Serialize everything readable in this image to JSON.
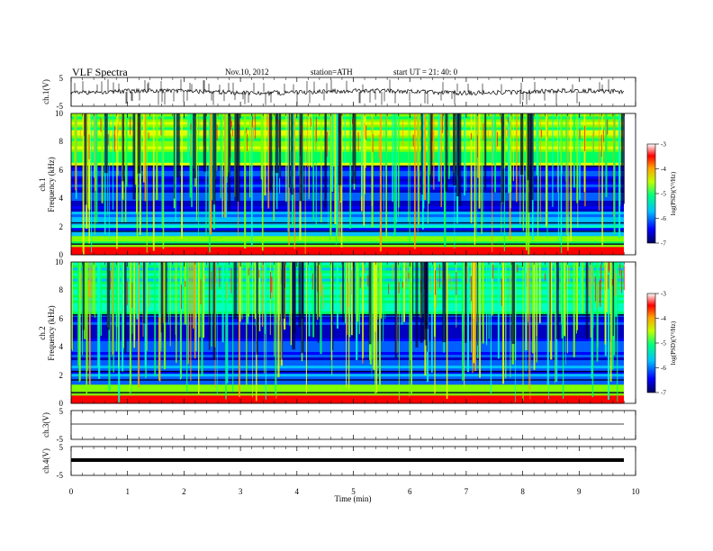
{
  "header": {
    "title": "VLF  Spectra",
    "date": "Nov.10, 2012",
    "station": "station=ATH",
    "start": "start  UT  =   21: 40: 0"
  },
  "chart_data": [
    {
      "type": "line",
      "ylabel": "ch.1(V)",
      "ylim": [
        -5,
        5
      ],
      "yticks": [
        "5",
        "-5"
      ],
      "description_level": -0.2
    },
    {
      "type": "heatmap",
      "ylabel_channel": "ch.1",
      "ylabel": "Frequency  (kHz)",
      "ylim": [
        0,
        10
      ],
      "yticks": [
        "0",
        "2",
        "4",
        "6",
        "8",
        "10"
      ],
      "colorbar": {
        "label": "log(PSD)(V²/Hz)",
        "range": [
          -7,
          -3
        ],
        "ticks": [
          "-3",
          "-4",
          "-5",
          "-6",
          "-7"
        ],
        "colors": [
          "#000060",
          "#0000ff",
          "#00c0ff",
          "#00ff80",
          "#c0ff00",
          "#ffa000",
          "#ff0000",
          "#ffffff"
        ]
      }
    },
    {
      "type": "heatmap",
      "ylabel_channel": "ch.2",
      "ylabel": "Frequency  (kHz)",
      "ylim": [
        0,
        10
      ],
      "yticks": [
        "0",
        "2",
        "4",
        "6",
        "8",
        "10"
      ],
      "colorbar": {
        "label": "log(PSD)(V²/Hz)",
        "range": [
          -7,
          -3
        ],
        "ticks": [
          "-3",
          "-4",
          "-5",
          "-6",
          "-7"
        ]
      }
    },
    {
      "type": "line",
      "ylabel": "ch.3(V)",
      "ylim": [
        -5,
        5
      ],
      "yticks": [
        "5",
        "-5"
      ]
    },
    {
      "type": "line",
      "ylabel": "ch.4(V)",
      "ylim": [
        -5,
        5
      ],
      "yticks": [
        "5",
        "-5"
      ]
    }
  ],
  "xaxis": {
    "label": "Time  (min)",
    "range": [
      0,
      10
    ],
    "ticks": [
      "0",
      "1",
      "2",
      "3",
      "4",
      "5",
      "6",
      "7",
      "8",
      "9",
      "10"
    ]
  }
}
